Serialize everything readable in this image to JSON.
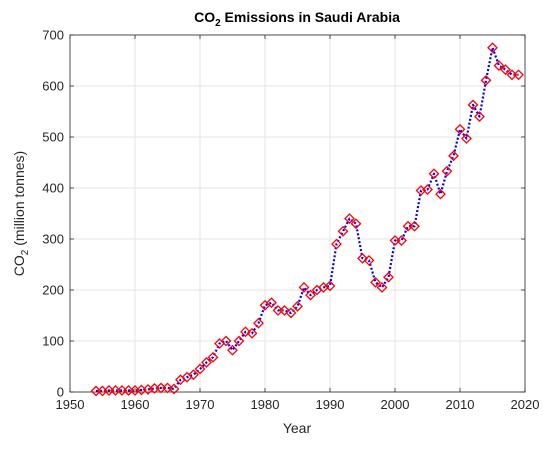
{
  "chart_data": {
    "type": "line",
    "title_main": "CO",
    "title_sub": "2",
    "title_rest": " Emissions in Saudi Arabia",
    "xlabel": "Year",
    "ylabel_main": "CO",
    "ylabel_sub": "2",
    "ylabel_rest": " (million tonnes)",
    "xlim": [
      1950,
      2020
    ],
    "ylim": [
      0,
      700
    ],
    "xticks": [
      1950,
      1960,
      1970,
      1980,
      1990,
      2000,
      2010,
      2020
    ],
    "yticks": [
      0,
      100,
      200,
      300,
      400,
      500,
      600,
      700
    ],
    "grid": true,
    "line_color": "#0000ff",
    "marker_color": "#ff0000",
    "line_style": "dotted",
    "marker": "diamond",
    "series": [
      {
        "x": [
          1954,
          1955,
          1956,
          1957,
          1958,
          1959,
          1960,
          1961,
          1962,
          1963,
          1964,
          1965,
          1966,
          1967,
          1968,
          1969,
          1970,
          1971,
          1972,
          1973,
          1974,
          1975,
          1976,
          1977,
          1978,
          1979,
          1980,
          1981,
          1982,
          1983,
          1984,
          1985,
          1986,
          1987,
          1988,
          1989,
          1990,
          1991,
          1992,
          1993,
          1994,
          1995,
          1996,
          1997,
          1998,
          1999,
          2000,
          2001,
          2002,
          2003,
          2004,
          2005,
          2006,
          2007,
          2008,
          2009,
          2010,
          2011,
          2012,
          2013,
          2014,
          2015,
          2016,
          2017,
          2018,
          2019
        ],
        "values": [
          2,
          2,
          3,
          3,
          3,
          3,
          3,
          4,
          5,
          7,
          8,
          8,
          6,
          24,
          29,
          34,
          45,
          58,
          68,
          95,
          100,
          82,
          100,
          118,
          115,
          135,
          170,
          175,
          160,
          160,
          155,
          168,
          205,
          190,
          200,
          205,
          208,
          290,
          315,
          340,
          330,
          262,
          258,
          215,
          205,
          225,
          297,
          297,
          325,
          325,
          395,
          397,
          428,
          388,
          433,
          463,
          515,
          497,
          563,
          540,
          611,
          675,
          640,
          632,
          622,
          622
        ]
      }
    ]
  }
}
